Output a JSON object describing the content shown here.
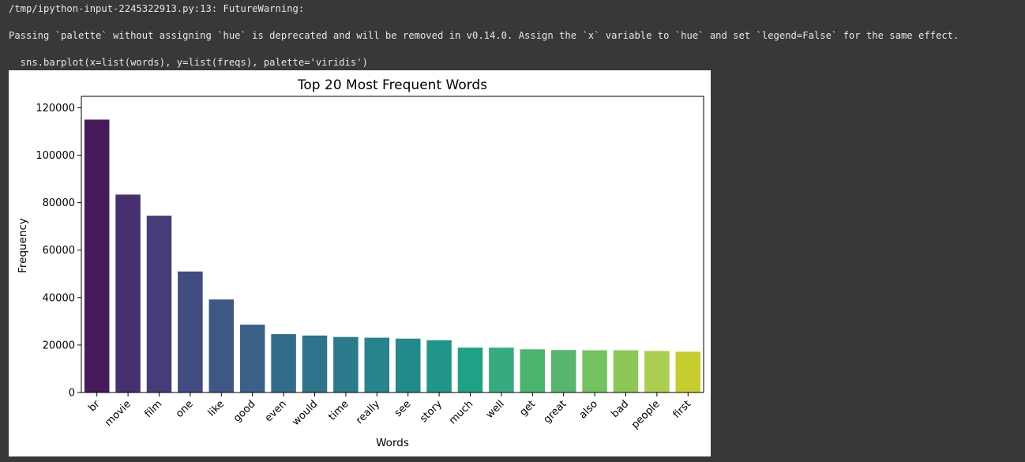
{
  "warning": {
    "header": "/tmp/ipython-input-2245322913.py:13: FutureWarning:",
    "message": "Passing `palette` without assigning `hue` is deprecated and will be removed in v0.14.0. Assign the `x` variable to `hue` and set `legend=False` for the same effect.",
    "code": "  sns.barplot(x=list(words), y=list(freqs), palette='viridis')"
  },
  "chart_data": {
    "type": "bar",
    "title": "Top 20 Most Frequent Words",
    "xlabel": "Words",
    "ylabel": "Frequency",
    "categories": [
      "br",
      "movie",
      "film",
      "one",
      "like",
      "good",
      "even",
      "would",
      "time",
      "really",
      "see",
      "story",
      "much",
      "well",
      "get",
      "great",
      "also",
      "bad",
      "people",
      "first"
    ],
    "values": [
      115000,
      83400,
      74500,
      51000,
      39200,
      28600,
      24600,
      24000,
      23400,
      23100,
      22700,
      22000,
      18900,
      18900,
      18200,
      17900,
      17800,
      17800,
      17500,
      17200
    ],
    "colors": [
      "#471a5b",
      "#482f6f",
      "#473c79",
      "#424b82",
      "#3f5785",
      "#3a6289",
      "#336b8b",
      "#2f748c",
      "#2b7b8d",
      "#27838d",
      "#238a8b",
      "#21958a",
      "#1fa185",
      "#35ab7f",
      "#4bb46f",
      "#57b66d",
      "#74c35f",
      "#8bc857",
      "#aace4f",
      "#c7cd2f"
    ],
    "yticks": [
      0,
      20000,
      40000,
      60000,
      80000,
      100000,
      120000
    ],
    "ylim": [
      0,
      120000
    ],
    "grid": false,
    "legend": false
  }
}
